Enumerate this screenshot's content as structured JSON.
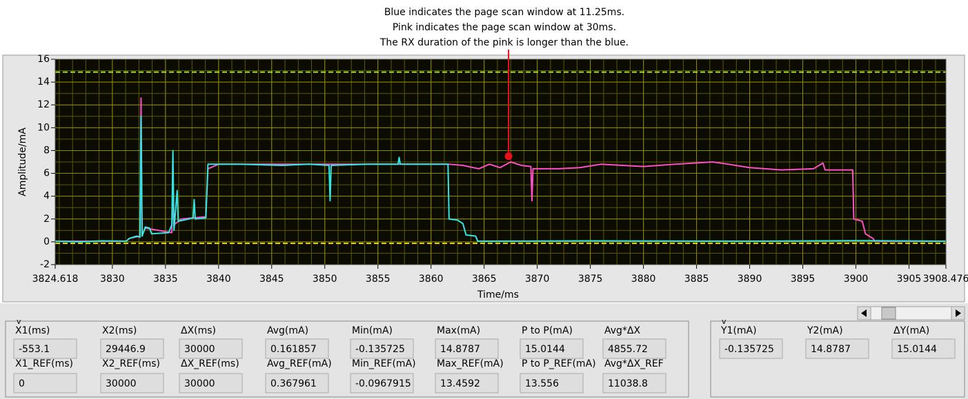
{
  "chart_data": {
    "type": "line",
    "annotation": {
      "lines": [
        "Blue indicates the page scan window at 11.25ms.",
        "Pink indicates the page scan window at 30ms.",
        "The RX duration of the pink is longer than the blue."
      ],
      "x": 3867.3,
      "y": 7.5,
      "color": "#e8101a"
    },
    "x_label": "Time/ms",
    "y_label": "Amplitude/mA",
    "xlim": [
      3824.618,
      3908.476
    ],
    "xticks": [
      3824.618,
      3830,
      3835,
      3840,
      3845,
      3850,
      3855,
      3860,
      3865,
      3870,
      3875,
      3880,
      3885,
      3890,
      3895,
      3900,
      3905,
      3908.476
    ],
    "ylim": [
      -2,
      16
    ],
    "yticks": [
      -2,
      0,
      2,
      4,
      6,
      8,
      10,
      12,
      14,
      16
    ],
    "grid": true,
    "minor_grid": true,
    "cursors": [
      {
        "value": -0.135725,
        "color": "#e8d820"
      },
      {
        "value": 14.8787,
        "color": "#a8e02a"
      }
    ],
    "series": [
      {
        "color": "#ff4fc8",
        "x": [
          3824.618,
          3831.3,
          3831.6,
          3832.6,
          3832.7,
          3832.8,
          3833.1,
          3835.6,
          3835.7,
          3835.8,
          3836.5,
          3838.8,
          3839.0,
          3840,
          3861.7,
          3863,
          3864.5,
          3865.5,
          3866.5,
          3867.5,
          3868.5,
          3869.4,
          3869.5,
          3869.6,
          3872,
          3874,
          3876,
          3878,
          3880,
          3883,
          3886.5,
          3888,
          3890,
          3893,
          3896,
          3896.9,
          3897.1,
          3899.7,
          3899.8,
          3900.6,
          3900.9,
          3901.6,
          3901.8,
          3908.476
        ],
        "values": [
          0.05,
          0.05,
          0.3,
          0.5,
          12.6,
          0.6,
          1.2,
          0.8,
          4.5,
          1.5,
          2.0,
          2.2,
          6.4,
          6.8,
          6.8,
          6.7,
          6.4,
          6.8,
          6.5,
          7.0,
          6.7,
          6.6,
          3.6,
          6.4,
          6.4,
          6.5,
          6.8,
          6.7,
          6.6,
          6.8,
          7.0,
          6.8,
          6.5,
          6.3,
          6.4,
          6.9,
          6.3,
          6.3,
          2.0,
          1.8,
          0.7,
          0.3,
          0.05,
          0.05
        ]
      },
      {
        "color": "#33e6e6",
        "x": [
          3824.618,
          3827,
          3829,
          3831.3,
          3831.6,
          3832.3,
          3832.6,
          3832.7,
          3832.8,
          3833.1,
          3833.5,
          3833.7,
          3835.3,
          3835.6,
          3835.7,
          3835.8,
          3836.1,
          3836.2,
          3837.2,
          3837.6,
          3837.7,
          3837.8,
          3838.8,
          3839.0,
          3842,
          3846,
          3848.5,
          3850.4,
          3850.5,
          3850.6,
          3854,
          3856.9,
          3857.0,
          3857.1,
          3861.6,
          3861.7,
          3862.5,
          3863.0,
          3863.3,
          3864.2,
          3864.4,
          3875,
          3890,
          3900,
          3908.476
        ],
        "values": [
          0.05,
          0.0,
          0.08,
          0.05,
          0.3,
          0.5,
          0.4,
          11,
          0.5,
          1.3,
          1.2,
          0.7,
          0.8,
          1.5,
          8.0,
          1.0,
          4.5,
          1.8,
          2.0,
          2.1,
          3.7,
          2.0,
          2.1,
          6.8,
          6.8,
          6.7,
          6.8,
          6.7,
          3.6,
          6.7,
          6.8,
          6.8,
          7.4,
          6.8,
          6.8,
          2.0,
          1.9,
          1.6,
          0.6,
          0.5,
          0.05,
          0.08,
          0.05,
          0.1,
          0.05
        ]
      }
    ]
  },
  "measurements": {
    "marker": "v",
    "labels": [
      [
        "X1(ms)",
        "X2(ms)",
        "ΔX(ms)",
        "Avg(mA)",
        "Min(mA)",
        "Max(mA)",
        "P to P(mA)",
        "Avg*ΔX"
      ],
      [
        "X1_REF(ms)",
        "X2_REF(ms)",
        "ΔX_REF(ms)",
        "Avg_REF(mA)",
        "Min_REF(mA)",
        "Max_REF(mA)",
        "P to P_REF(mA)",
        "Avg*ΔX_REF"
      ]
    ],
    "values": [
      [
        "-553.1",
        "29446.9",
        "30000",
        "0.161857",
        "-0.135725",
        "14.8787",
        "15.0144",
        "4855.72"
      ],
      [
        "0",
        "30000",
        "30000",
        "0.367961",
        "-0.0967915",
        "13.4592",
        "13.556",
        "11038.8"
      ]
    ]
  },
  "cursor_readout": {
    "marker": "v",
    "labels": [
      "Y1(mA)",
      "Y2(mA)",
      "ΔY(mA)"
    ],
    "values": [
      "-0.135725",
      "14.8787",
      "15.0144"
    ]
  }
}
